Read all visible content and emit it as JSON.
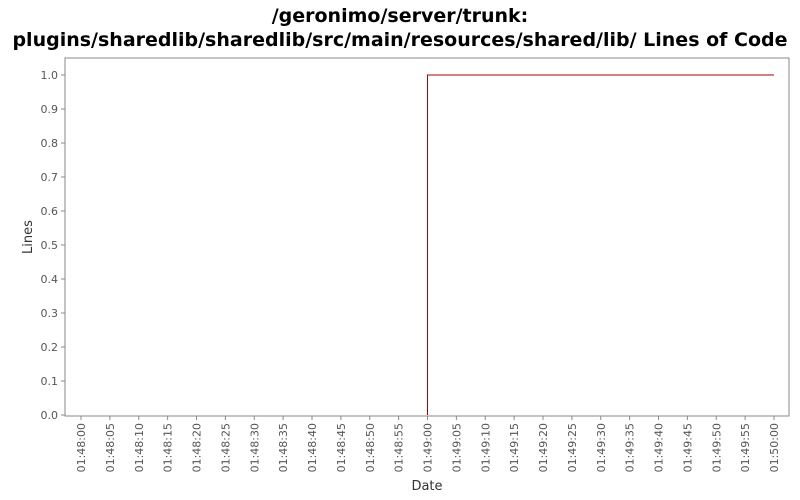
{
  "chart_data": {
    "type": "line",
    "title_line1": "/geronimo/server/trunk:",
    "title_line2": "plugins/sharedlib/sharedlib/src/main/resources/shared/lib/ Lines of Code",
    "xlabel": "Date",
    "ylabel": "Lines",
    "x_ticks": [
      "01:48:00",
      "01:48:05",
      "01:48:10",
      "01:48:15",
      "01:48:20",
      "01:48:25",
      "01:48:30",
      "01:48:35",
      "01:48:40",
      "01:48:45",
      "01:48:50",
      "01:48:55",
      "01:49:00",
      "01:49:05",
      "01:49:10",
      "01:49:15",
      "01:49:20",
      "01:49:25",
      "01:49:30",
      "01:49:35",
      "01:49:40",
      "01:49:45",
      "01:49:50",
      "01:49:55",
      "01:50:00"
    ],
    "y_ticks": [
      "0.0",
      "0.1",
      "0.2",
      "0.3",
      "0.4",
      "0.5",
      "0.6",
      "0.7",
      "0.8",
      "0.9",
      "1.0"
    ],
    "ylim": [
      0,
      1
    ],
    "xlim": [
      "01:48:00",
      "01:50:00"
    ],
    "grid": false,
    "series": [
      {
        "color": "#aa0000",
        "step": true,
        "points": [
          {
            "x": "01:49:00",
            "y": 0
          },
          {
            "x": "01:49:00",
            "y": 1
          },
          {
            "x": "01:50:00",
            "y": 1
          }
        ]
      }
    ]
  }
}
